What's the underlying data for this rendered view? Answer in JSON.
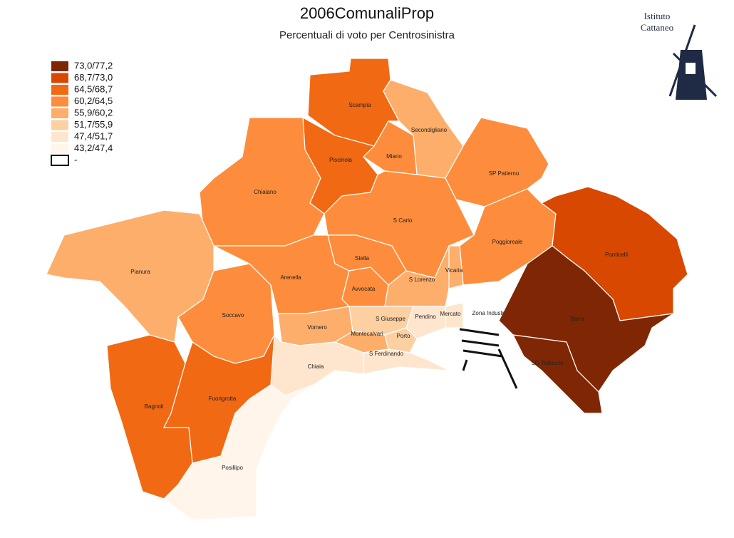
{
  "title": "2006ComunaliProp",
  "subtitle": "Percentuali di voto per Centrosinistra",
  "logo": {
    "line1": "Istituto",
    "line2": "Cattaneo"
  },
  "legend": [
    {
      "label": "73,0/77,2",
      "color": "#7f2704"
    },
    {
      "label": "68,7/73,0",
      "color": "#d94801"
    },
    {
      "label": "64,5/68,7",
      "color": "#f16913"
    },
    {
      "label": "60,2/64,5",
      "color": "#fd8d3c"
    },
    {
      "label": "55,9/60,2",
      "color": "#fdae6b"
    },
    {
      "label": "51,7/55,9",
      "color": "#fdd0a2"
    },
    {
      "label": "47,4/51,7",
      "color": "#fee6ce"
    },
    {
      "label": "43,2/47,4",
      "color": "#fff5eb"
    },
    {
      "label": "-",
      "color": "#ffffff"
    }
  ],
  "regions": [
    {
      "name": "Scampia",
      "color": "#f16913"
    },
    {
      "name": "Piscinola",
      "color": "#f16913"
    },
    {
      "name": "Secondigliano",
      "color": "#fdae6b"
    },
    {
      "name": "Miano",
      "color": "#fd8d3c"
    },
    {
      "name": "SP Patierno",
      "color": "#fd8d3c"
    },
    {
      "name": "Chiaiano",
      "color": "#fd8d3c"
    },
    {
      "name": "S Carlo",
      "color": "#fd8d3c"
    },
    {
      "name": "Poggioreale",
      "color": "#fd8d3c"
    },
    {
      "name": "Ponticelli",
      "color": "#d94801"
    },
    {
      "name": "Barra",
      "color": "#7f2704"
    },
    {
      "name": "SG Teduccio",
      "color": "#7f2704"
    },
    {
      "name": "Pianura",
      "color": "#fdae6b"
    },
    {
      "name": "Soccavo",
      "color": "#fd8d3c"
    },
    {
      "name": "Arenella",
      "color": "#fd8d3c"
    },
    {
      "name": "Stella",
      "color": "#fd8d3c"
    },
    {
      "name": "Avvocata",
      "color": "#fd8d3c"
    },
    {
      "name": "S Lorenzo",
      "color": "#fdae6b"
    },
    {
      "name": "Vicaria",
      "color": "#fdae6b"
    },
    {
      "name": "Vomero",
      "color": "#fdae6b"
    },
    {
      "name": "S Giuseppe",
      "color": "#fdd0a2"
    },
    {
      "name": "Montecalvari",
      "color": "#fdae6b"
    },
    {
      "name": "Porto",
      "color": "#fdd0a2"
    },
    {
      "name": "Pendino",
      "color": "#fee6ce"
    },
    {
      "name": "Mercato",
      "color": "#fee6ce"
    },
    {
      "name": "Zona Industr",
      "color": "#ffffff"
    },
    {
      "name": "S Ferdinando",
      "color": "#fee6ce"
    },
    {
      "name": "Chiaia",
      "color": "#fee6ce"
    },
    {
      "name": "Bagnoli",
      "color": "#f16913"
    },
    {
      "name": "Fuorigrotta",
      "color": "#f16913"
    },
    {
      "name": "Posillipo",
      "color": "#fff5eb"
    }
  ]
}
